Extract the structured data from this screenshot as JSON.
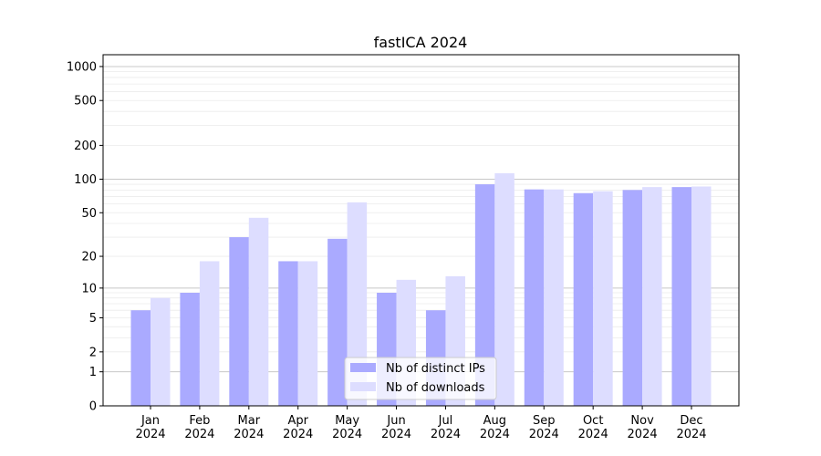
{
  "chart_data": {
    "type": "bar",
    "title": "fastICA 2024",
    "xlabel": "",
    "ylabel": "",
    "yscale": "log10(1+y)",
    "ylim": [
      0,
      1300
    ],
    "yticks": [
      0,
      1,
      2,
      5,
      10,
      20,
      50,
      100,
      200,
      500,
      1000
    ],
    "grid": true,
    "legend_position": "bottom-center",
    "categories": [
      "Jan\n2024",
      "Feb\n2024",
      "Mar\n2024",
      "Apr\n2024",
      "May\n2024",
      "Jun\n2024",
      "Jul\n2024",
      "Aug\n2024",
      "Sep\n2024",
      "Oct\n2024",
      "Nov\n2024",
      "Dec\n2024"
    ],
    "series": [
      {
        "name": "Nb of distinct IPs",
        "color": "#aaaaff",
        "values": [
          6,
          9,
          30,
          18,
          29,
          9,
          6,
          90,
          81,
          75,
          80,
          85
        ]
      },
      {
        "name": "Nb of downloads",
        "color": "#ddddff",
        "values": [
          8,
          18,
          45,
          18,
          62,
          12,
          13,
          113,
          81,
          78,
          85,
          86
        ]
      }
    ]
  }
}
